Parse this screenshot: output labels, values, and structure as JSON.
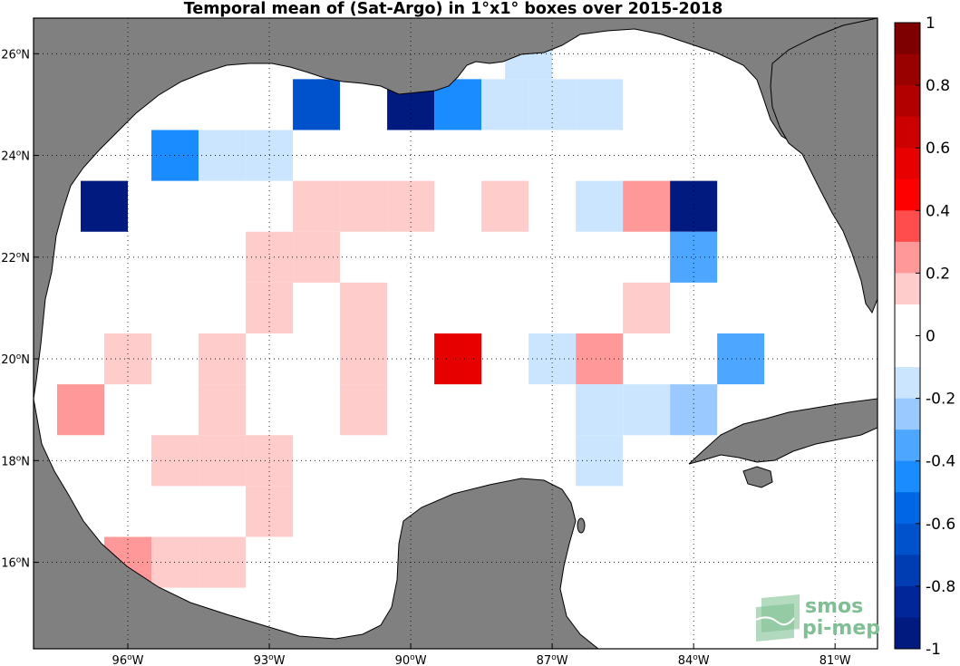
{
  "title": "Temporal mean of (Sat-Argo) in 1°x1° boxes over 2015-2018",
  "lon_ticks": [
    {
      "value": -96,
      "deg": "96",
      "hem": "W"
    },
    {
      "value": -93,
      "deg": "93",
      "hem": "W"
    },
    {
      "value": -90,
      "deg": "90",
      "hem": "W"
    },
    {
      "value": -87,
      "deg": "87",
      "hem": "W"
    },
    {
      "value": -84,
      "deg": "84",
      "hem": "W"
    },
    {
      "value": -81,
      "deg": "81",
      "hem": "W"
    }
  ],
  "lat_ticks": [
    {
      "value": 26,
      "deg": "26",
      "hem": "N"
    },
    {
      "value": 24,
      "deg": "24",
      "hem": "N"
    },
    {
      "value": 22,
      "deg": "22",
      "hem": "N"
    },
    {
      "value": 20,
      "deg": "20",
      "hem": "N"
    },
    {
      "value": 18,
      "deg": "18",
      "hem": "N"
    },
    {
      "value": 16,
      "deg": "16",
      "hem": "N"
    }
  ],
  "extent": {
    "lon_min": -98,
    "lon_max": -80.1,
    "lat_min": 14.3,
    "lat_max": 26.7
  },
  "colorbar": {
    "ticks": [
      "1",
      "0.8",
      "0.6",
      "0.4",
      "0.2",
      "0",
      "-0.2",
      "-0.4",
      "-0.6",
      "-0.8",
      "-1"
    ],
    "tick_values": [
      1,
      0.8,
      0.6,
      0.4,
      0.2,
      0,
      -0.2,
      -0.4,
      -0.6,
      -0.8,
      -1
    ],
    "range": [
      -1,
      1
    ],
    "colors_top_to_bottom": [
      "#7f0000",
      "#990000",
      "#b20000",
      "#cc0000",
      "#e60000",
      "#ff0000",
      "#ff4d4d",
      "#ff9999",
      "#ffcccc",
      "#ffffff",
      "#ffffff",
      "#cce5ff",
      "#99c9ff",
      "#4da6ff",
      "#1a8cff",
      "#0066e6",
      "#0052cc",
      "#003db3",
      "#002699",
      "#001a80"
    ]
  },
  "land_color": "#808080",
  "ocean_color": "#ffffff",
  "boxes": [
    {
      "lon": -87.5,
      "lat": 26.0,
      "color": "#cce5ff"
    },
    {
      "lon": -92.0,
      "lat": 25.0,
      "color": "#0052cc"
    },
    {
      "lon": -90.0,
      "lat": 25.0,
      "color": "#001a80"
    },
    {
      "lon": -89.0,
      "lat": 25.0,
      "color": "#1a8cff"
    },
    {
      "lon": -88.0,
      "lat": 25.0,
      "color": "#cce5ff"
    },
    {
      "lon": -87.0,
      "lat": 25.0,
      "color": "#cce5ff"
    },
    {
      "lon": -86.0,
      "lat": 25.0,
      "color": "#cce5ff"
    },
    {
      "lon": -95.0,
      "lat": 24.0,
      "color": "#1a8cff"
    },
    {
      "lon": -94.0,
      "lat": 24.0,
      "color": "#cce5ff"
    },
    {
      "lon": -93.0,
      "lat": 24.0,
      "color": "#cce5ff"
    },
    {
      "lon": -96.5,
      "lat": 23.0,
      "color": "#001a80"
    },
    {
      "lon": -92.0,
      "lat": 23.0,
      "color": "#ffcccc"
    },
    {
      "lon": -91.0,
      "lat": 23.0,
      "color": "#ffcccc"
    },
    {
      "lon": -90.0,
      "lat": 23.0,
      "color": "#ffcccc"
    },
    {
      "lon": -88.0,
      "lat": 23.0,
      "color": "#ffcccc"
    },
    {
      "lon": -86.0,
      "lat": 23.0,
      "color": "#cce5ff"
    },
    {
      "lon": -85.0,
      "lat": 23.0,
      "color": "#ff9999"
    },
    {
      "lon": -84.0,
      "lat": 23.0,
      "color": "#001a80"
    },
    {
      "lon": -93.0,
      "lat": 22.0,
      "color": "#ffcccc"
    },
    {
      "lon": -92.0,
      "lat": 22.0,
      "color": "#ffcccc"
    },
    {
      "lon": -84.0,
      "lat": 22.0,
      "color": "#4da6ff"
    },
    {
      "lon": -93.0,
      "lat": 21.0,
      "color": "#ffcccc"
    },
    {
      "lon": -91.0,
      "lat": 21.0,
      "color": "#ffcccc"
    },
    {
      "lon": -85.0,
      "lat": 21.0,
      "color": "#ffcccc"
    },
    {
      "lon": -96.0,
      "lat": 20.0,
      "color": "#ffcccc"
    },
    {
      "lon": -94.0,
      "lat": 20.0,
      "color": "#ffcccc"
    },
    {
      "lon": -91.0,
      "lat": 20.0,
      "color": "#ffcccc"
    },
    {
      "lon": -89.0,
      "lat": 20.0,
      "color": "#e60000"
    },
    {
      "lon": -87.0,
      "lat": 20.0,
      "color": "#cce5ff"
    },
    {
      "lon": -86.0,
      "lat": 20.0,
      "color": "#ff9999"
    },
    {
      "lon": -83.0,
      "lat": 20.0,
      "color": "#4da6ff"
    },
    {
      "lon": -97.0,
      "lat": 19.0,
      "color": "#ff9999"
    },
    {
      "lon": -94.0,
      "lat": 19.0,
      "color": "#ffcccc"
    },
    {
      "lon": -91.0,
      "lat": 19.0,
      "color": "#ffcccc"
    },
    {
      "lon": -86.0,
      "lat": 19.0,
      "color": "#cce5ff"
    },
    {
      "lon": -85.0,
      "lat": 19.0,
      "color": "#cce5ff"
    },
    {
      "lon": -84.0,
      "lat": 19.0,
      "color": "#99c9ff"
    },
    {
      "lon": -95.0,
      "lat": 18.0,
      "color": "#ffcccc"
    },
    {
      "lon": -94.0,
      "lat": 18.0,
      "color": "#ffcccc"
    },
    {
      "lon": -93.0,
      "lat": 18.0,
      "color": "#ffcccc"
    },
    {
      "lon": -86.0,
      "lat": 18.0,
      "color": "#cce5ff"
    },
    {
      "lon": -93.0,
      "lat": 17.0,
      "color": "#ffcccc"
    },
    {
      "lon": -96.0,
      "lat": 16.0,
      "color": "#ff9999"
    },
    {
      "lon": -95.0,
      "lat": 16.0,
      "color": "#ffcccc"
    },
    {
      "lon": -94.0,
      "lat": 16.0,
      "color": "#ffcccc"
    }
  ],
  "logo": {
    "line1": "smos",
    "line2": "pi-mep"
  }
}
